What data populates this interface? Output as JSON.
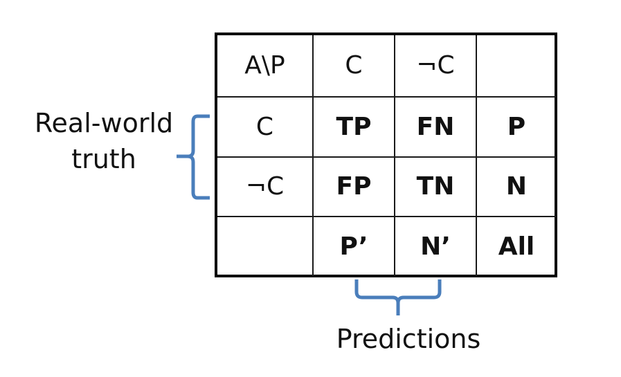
{
  "matrix": {
    "rows": [
      [
        {
          "text": "A\\P",
          "bold": false
        },
        {
          "text": "C",
          "bold": false
        },
        {
          "text": "¬C",
          "bold": false
        },
        {
          "text": "",
          "bold": false
        }
      ],
      [
        {
          "text": "C",
          "bold": false
        },
        {
          "text": "TP",
          "bold": true
        },
        {
          "text": "FN",
          "bold": true
        },
        {
          "text": "P",
          "bold": true
        }
      ],
      [
        {
          "text": "¬C",
          "bold": false
        },
        {
          "text": "FP",
          "bold": true
        },
        {
          "text": "TN",
          "bold": true
        },
        {
          "text": "N",
          "bold": true
        }
      ],
      [
        {
          "text": "",
          "bold": false
        },
        {
          "text": "P’",
          "bold": true
        },
        {
          "text": "N’",
          "bold": true
        },
        {
          "text": "All",
          "bold": true
        }
      ]
    ]
  },
  "labels": {
    "rows_label_line1": "Real-world",
    "rows_label_line2": "truth",
    "columns_label": "Predictions"
  },
  "colors": {
    "brace": "#4a7ebb",
    "grid": "#000000",
    "text": "#111111"
  }
}
